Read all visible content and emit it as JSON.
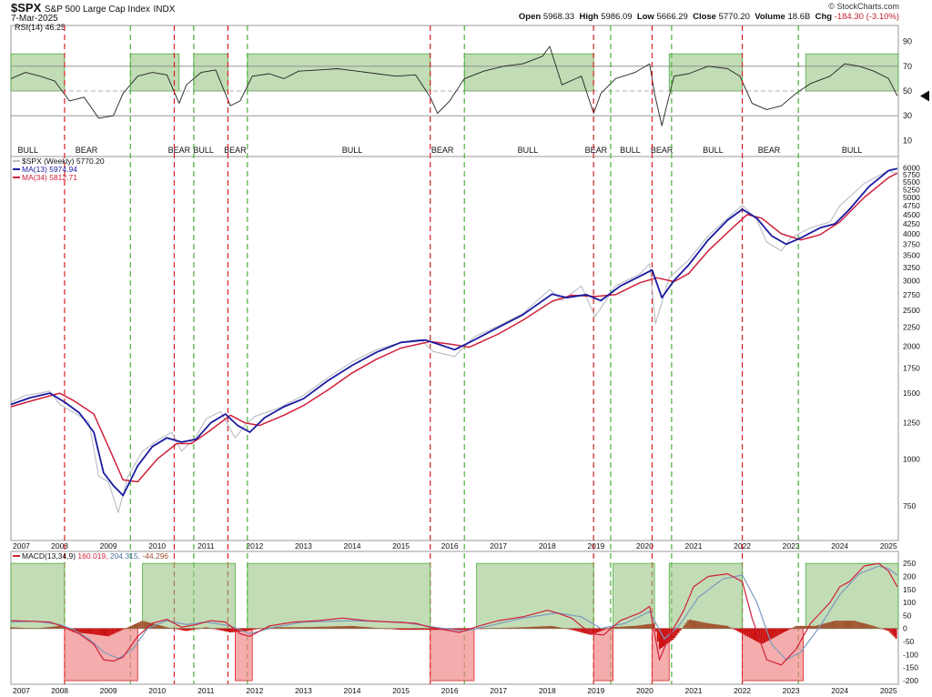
{
  "header": {
    "symbol": "$SPX",
    "description": "S&P 500 Large Cap Index",
    "exchange": "INDX",
    "date": "7-Mar-2025",
    "brand": "© StockCharts.com",
    "open_label": "Open",
    "open": "5968.33",
    "high_label": "High",
    "high": "5986.09",
    "low_label": "Low",
    "low": "5666.29",
    "close_label": "Close",
    "close": "5770.20",
    "volume_label": "Volume",
    "volume": "18.6B",
    "chg_label": "Chg",
    "chg": "-184.30 (-3.10%)"
  },
  "colors": {
    "bull_box": "#8fbf7a",
    "bear_box": "#f08080",
    "bull_line": "#4caf3a",
    "bear_line": "#d62020",
    "ma13": "#1a1aa0",
    "ma34": "#d0203a",
    "price": "#b8bcc4",
    "rsi": "#222222"
  },
  "chart_data": [
    {
      "type": "line",
      "panel": "rsi",
      "title": "RSI(14) 46.25",
      "ylim": [
        0,
        100
      ],
      "yticks": [
        10,
        30,
        50,
        70,
        90
      ],
      "regime_labels": [
        {
          "text": "BULL",
          "x": 2007.35
        },
        {
          "text": "BEAR",
          "x": 2008.55
        },
        {
          "text": "BEAR",
          "x": 2010.45
        },
        {
          "text": "BULL",
          "x": 2010.95
        },
        {
          "text": "BEAR",
          "x": 2011.6
        },
        {
          "text": "BULL",
          "x": 2014.0
        },
        {
          "text": "BEAR",
          "x": 2015.85
        },
        {
          "text": "BULL",
          "x": 2017.6
        },
        {
          "text": "BEAR",
          "x": 2019.0
        },
        {
          "text": "BULL",
          "x": 2019.7
        },
        {
          "text": "BEAR",
          "x": 2020.35
        },
        {
          "text": "BULL",
          "x": 2021.4
        },
        {
          "text": "BEAR",
          "x": 2022.55
        },
        {
          "text": "BULL",
          "x": 2024.25
        }
      ],
      "bull_periods": [
        [
          2007.0,
          2008.1
        ],
        [
          2009.45,
          2010.45
        ],
        [
          2010.75,
          2011.45
        ],
        [
          2011.85,
          2015.6
        ],
        [
          2016.3,
          2018.95
        ],
        [
          2020.5,
          2022.0
        ],
        [
          2023.3,
          2025.2
        ]
      ],
      "bear_periods": [
        [
          2008.1,
          2009.4
        ],
        [
          2010.35,
          2010.7
        ],
        [
          2011.45,
          2011.8
        ],
        [
          2015.6,
          2016.25
        ],
        [
          2018.95,
          2019.3
        ],
        [
          2020.15,
          2020.5
        ],
        [
          2022.0,
          2023.15
        ]
      ],
      "series": [
        {
          "name": "RSI(14)",
          "value": "46.25",
          "x": [
            2007.0,
            2007.3,
            2007.6,
            2007.9,
            2008.2,
            2008.5,
            2008.8,
            2009.1,
            2009.3,
            2009.6,
            2009.9,
            2010.2,
            2010.45,
            2010.6,
            2010.9,
            2011.2,
            2011.5,
            2011.7,
            2011.95,
            2012.3,
            2012.6,
            2012.9,
            2013.3,
            2013.7,
            2014.1,
            2014.5,
            2014.9,
            2015.3,
            2015.6,
            2015.75,
            2016.0,
            2016.3,
            2016.7,
            2017.1,
            2017.5,
            2017.9,
            2018.05,
            2018.3,
            2018.7,
            2018.95,
            2019.1,
            2019.4,
            2019.8,
            2020.1,
            2020.2,
            2020.35,
            2020.6,
            2020.9,
            2021.3,
            2021.7,
            2021.95,
            2022.2,
            2022.5,
            2022.8,
            2023.1,
            2023.4,
            2023.8,
            2024.1,
            2024.4,
            2024.7,
            2025.0,
            2025.18
          ],
          "values": [
            60,
            65,
            62,
            58,
            42,
            45,
            28,
            30,
            48,
            62,
            65,
            63,
            40,
            55,
            65,
            67,
            38,
            42,
            62,
            64,
            60,
            66,
            67,
            68,
            66,
            64,
            62,
            63,
            45,
            32,
            42,
            60,
            66,
            70,
            72,
            78,
            86,
            55,
            62,
            32,
            48,
            60,
            65,
            72,
            48,
            22,
            62,
            64,
            70,
            68,
            62,
            40,
            35,
            38,
            48,
            56,
            62,
            72,
            70,
            66,
            60,
            46
          ]
        }
      ]
    },
    {
      "type": "line",
      "panel": "price",
      "title": "$SPX (Weekly) 5770.20",
      "scale": "log",
      "ylim": [
        620,
        6150
      ],
      "yticks": [
        750,
        1000,
        1250,
        1500,
        1750,
        2000,
        2250,
        2500,
        2750,
        3000,
        3250,
        3500,
        3750,
        4000,
        4250,
        4500,
        4750,
        5000,
        5250,
        5500,
        5750,
        6000
      ],
      "xticks": [
        "2007",
        "2008",
        "2009",
        "2010",
        "2011",
        "2012",
        "2013",
        "2014",
        "2015",
        "2016",
        "2017",
        "2018",
        "2019",
        "2020",
        "2021",
        "2022",
        "2023",
        "2024",
        "2025"
      ],
      "bull_lines": [
        2009.45,
        2010.75,
        2011.85,
        2016.3,
        2019.3,
        2020.55,
        2023.15
      ],
      "bear_lines": [
        2008.1,
        2010.35,
        2011.45,
        2015.6,
        2018.95,
        2020.15,
        2022.0
      ],
      "series": [
        {
          "name": "$SPX (Weekly)",
          "value": "5770.20",
          "x": [
            2007.0,
            2007.3,
            2007.6,
            2007.8,
            2008.0,
            2008.3,
            2008.6,
            2008.8,
            2009.0,
            2009.2,
            2009.4,
            2009.7,
            2010.0,
            2010.3,
            2010.5,
            2010.8,
            2011.0,
            2011.3,
            2011.6,
            2011.8,
            2012.0,
            2012.5,
            2013.0,
            2013.5,
            2014.0,
            2014.5,
            2015.0,
            2015.4,
            2015.65,
            2016.1,
            2016.5,
            2017.0,
            2017.5,
            2018.05,
            2018.3,
            2018.7,
            2018.98,
            2019.4,
            2019.9,
            2020.1,
            2020.22,
            2020.5,
            2020.9,
            2021.3,
            2021.7,
            2022.0,
            2022.3,
            2022.5,
            2022.8,
            2023.0,
            2023.4,
            2023.8,
            2024.0,
            2024.5,
            2025.0,
            2025.18
          ],
          "values": [
            1420,
            1480,
            1500,
            1520,
            1400,
            1330,
            1260,
            900,
            870,
            720,
            900,
            1050,
            1120,
            1180,
            1050,
            1150,
            1280,
            1340,
            1140,
            1230,
            1300,
            1370,
            1480,
            1650,
            1820,
            1960,
            2050,
            2090,
            1940,
            1880,
            2120,
            2270,
            2450,
            2840,
            2650,
            2900,
            2400,
            2900,
            3120,
            3330,
            2300,
            3050,
            3400,
            3950,
            4400,
            4770,
            4350,
            3800,
            3600,
            3900,
            4150,
            4300,
            4750,
            5450,
            5900,
            5770
          ]
        },
        {
          "name": "MA(13)",
          "value": "5974.94",
          "x": [
            2007.0,
            2007.4,
            2007.8,
            2008.1,
            2008.4,
            2008.7,
            2008.9,
            2009.1,
            2009.3,
            2009.6,
            2009.9,
            2010.2,
            2010.5,
            2010.8,
            2011.1,
            2011.4,
            2011.65,
            2011.9,
            2012.2,
            2012.6,
            2013.0,
            2013.5,
            2014.0,
            2014.5,
            2015.0,
            2015.5,
            2015.8,
            2016.1,
            2016.5,
            2017.0,
            2017.5,
            2018.1,
            2018.4,
            2018.8,
            2019.1,
            2019.5,
            2019.9,
            2020.15,
            2020.35,
            2020.6,
            2020.9,
            2021.3,
            2021.7,
            2022.0,
            2022.3,
            2022.6,
            2022.9,
            2023.2,
            2023.6,
            2023.9,
            2024.2,
            2024.6,
            2025.0,
            2025.18
          ],
          "values": [
            1400,
            1460,
            1500,
            1420,
            1330,
            1180,
            920,
            850,
            800,
            960,
            1080,
            1140,
            1110,
            1130,
            1250,
            1320,
            1230,
            1180,
            1290,
            1380,
            1450,
            1620,
            1780,
            1930,
            2050,
            2080,
            2020,
            1960,
            2080,
            2250,
            2430,
            2760,
            2700,
            2750,
            2650,
            2900,
            3080,
            3200,
            2700,
            3000,
            3300,
            3850,
            4350,
            4650,
            4400,
            3950,
            3750,
            3900,
            4150,
            4250,
            4650,
            5350,
            5900,
            5975
          ]
        },
        {
          "name": "MA(34)",
          "value": "5812.71",
          "x": [
            2007.0,
            2007.5,
            2008.0,
            2008.3,
            2008.7,
            2009.0,
            2009.3,
            2009.6,
            2010.0,
            2010.4,
            2010.7,
            2011.0,
            2011.5,
            2011.8,
            2012.1,
            2012.6,
            2013.0,
            2013.5,
            2014.0,
            2014.5,
            2015.0,
            2015.6,
            2016.0,
            2016.4,
            2017.0,
            2017.5,
            2018.1,
            2018.5,
            2019.0,
            2019.4,
            2019.9,
            2020.25,
            2020.6,
            2020.9,
            2021.3,
            2021.8,
            2022.1,
            2022.4,
            2022.8,
            2023.2,
            2023.6,
            2024.0,
            2024.5,
            2025.0,
            2025.18
          ],
          "values": [
            1380,
            1440,
            1500,
            1430,
            1320,
            1080,
            880,
            870,
            1000,
            1100,
            1100,
            1170,
            1310,
            1250,
            1230,
            1310,
            1390,
            1530,
            1700,
            1850,
            1980,
            2060,
            2030,
            1990,
            2160,
            2350,
            2640,
            2740,
            2720,
            2750,
            2960,
            3050,
            2980,
            3130,
            3600,
            4150,
            4500,
            4400,
            4000,
            3850,
            3980,
            4300,
            5000,
            5650,
            5813
          ]
        }
      ]
    },
    {
      "type": "line",
      "panel": "macd",
      "title": "MACD(13,34,9) 160.019, 204.315, -44.296",
      "ylim": [
        -200,
        275
      ],
      "yticks": [
        -200,
        -150,
        -100,
        -50,
        0,
        50,
        100,
        150,
        200,
        250
      ],
      "xticks": [
        "2007",
        "2008",
        "2009",
        "2010",
        "2011",
        "2012",
        "2013",
        "2014",
        "2015",
        "2016",
        "2017",
        "2018",
        "2019",
        "2020",
        "2021",
        "2022",
        "2023",
        "2024",
        "2025"
      ],
      "bull_periods": [
        [
          2007.0,
          2008.1
        ],
        [
          2009.7,
          2011.6
        ],
        [
          2011.85,
          2015.6
        ],
        [
          2016.55,
          2018.95
        ],
        [
          2019.35,
          2020.2
        ],
        [
          2020.5,
          2022.0
        ],
        [
          2023.3,
          2025.2
        ]
      ],
      "bear_periods": [
        [
          2008.1,
          2009.6
        ],
        [
          2011.6,
          2011.95
        ],
        [
          2015.6,
          2016.5
        ],
        [
          2018.95,
          2019.35
        ],
        [
          2020.15,
          2020.5
        ],
        [
          2022.0,
          2023.25
        ]
      ],
      "series": [
        {
          "name": "MACD",
          "value": "160.019",
          "x": [
            2007.0,
            2007.4,
            2007.8,
            2008.1,
            2008.4,
            2008.7,
            2008.9,
            2009.1,
            2009.3,
            2009.6,
            2009.9,
            2010.2,
            2010.5,
            2010.8,
            2011.1,
            2011.4,
            2011.7,
            2011.9,
            2012.3,
            2012.8,
            2013.3,
            2013.8,
            2014.3,
            2014.8,
            2015.3,
            2015.6,
            2015.9,
            2016.2,
            2016.6,
            2017.0,
            2017.5,
            2018.0,
            2018.2,
            2018.5,
            2018.9,
            2019.15,
            2019.5,
            2019.9,
            2020.1,
            2020.3,
            2020.5,
            2020.8,
            2021.0,
            2021.3,
            2021.7,
            2022.0,
            2022.2,
            2022.5,
            2022.8,
            2023.1,
            2023.4,
            2023.8,
            2024.0,
            2024.2,
            2024.5,
            2024.8,
            2025.0,
            2025.18
          ],
          "values": [
            30,
            28,
            25,
            5,
            -20,
            -60,
            -120,
            -125,
            -110,
            -30,
            20,
            35,
            5,
            15,
            30,
            25,
            -20,
            -30,
            10,
            25,
            30,
            40,
            30,
            25,
            20,
            5,
            -5,
            -15,
            10,
            30,
            45,
            70,
            60,
            40,
            -20,
            -25,
            30,
            60,
            85,
            -120,
            -30,
            70,
            160,
            200,
            210,
            180,
            40,
            -120,
            -140,
            -80,
            20,
            100,
            160,
            180,
            240,
            250,
            220,
            160
          ]
        },
        {
          "name": "Signal",
          "value": "204.315",
          "x": [
            2007.0,
            2007.5,
            2008.0,
            2008.3,
            2008.6,
            2008.9,
            2009.2,
            2009.5,
            2009.8,
            2010.2,
            2010.6,
            2011.0,
            2011.5,
            2011.9,
            2012.4,
            2013.0,
            2014.0,
            2015.0,
            2015.7,
            2016.3,
            2016.8,
            2017.5,
            2018.2,
            2018.7,
            2019.1,
            2019.6,
            2020.1,
            2020.4,
            2020.7,
            2021.1,
            2021.6,
            2022.0,
            2022.3,
            2022.6,
            2022.9,
            2023.2,
            2023.6,
            2024.0,
            2024.4,
            2024.8,
            2025.0,
            2025.18
          ],
          "values": [
            25,
            28,
            15,
            -5,
            -40,
            -90,
            -115,
            -80,
            0,
            30,
            15,
            25,
            10,
            -20,
            5,
            25,
            30,
            25,
            5,
            -10,
            10,
            40,
            60,
            45,
            0,
            20,
            65,
            -40,
            10,
            120,
            190,
            205,
            100,
            -60,
            -120,
            -90,
            10,
            130,
            210,
            240,
            230,
            204
          ]
        },
        {
          "name": "Histogram",
          "value": "-44.296",
          "x": [
            2007.0,
            2007.5,
            2008.0,
            2008.3,
            2008.6,
            2009.0,
            2009.4,
            2009.7,
            2010.2,
            2010.6,
            2011.0,
            2011.5,
            2011.8,
            2012.3,
            2013.0,
            2014.0,
            2015.0,
            2015.7,
            2016.2,
            2016.7,
            2017.5,
            2018.1,
            2018.5,
            2018.9,
            2019.3,
            2019.8,
            2020.2,
            2020.3,
            2020.6,
            2020.9,
            2021.3,
            2021.7,
            2022.1,
            2022.4,
            2022.8,
            2023.1,
            2023.5,
            2023.9,
            2024.3,
            2024.7,
            2025.0,
            2025.18
          ],
          "values": [
            5,
            0,
            10,
            -15,
            -20,
            -30,
            5,
            30,
            5,
            -10,
            5,
            -15,
            -10,
            5,
            5,
            10,
            -5,
            -5,
            -5,
            0,
            5,
            10,
            -5,
            -25,
            5,
            10,
            20,
            -80,
            -40,
            35,
            20,
            10,
            -30,
            -60,
            -20,
            10,
            10,
            30,
            30,
            10,
            -10,
            -44
          ]
        }
      ]
    }
  ]
}
